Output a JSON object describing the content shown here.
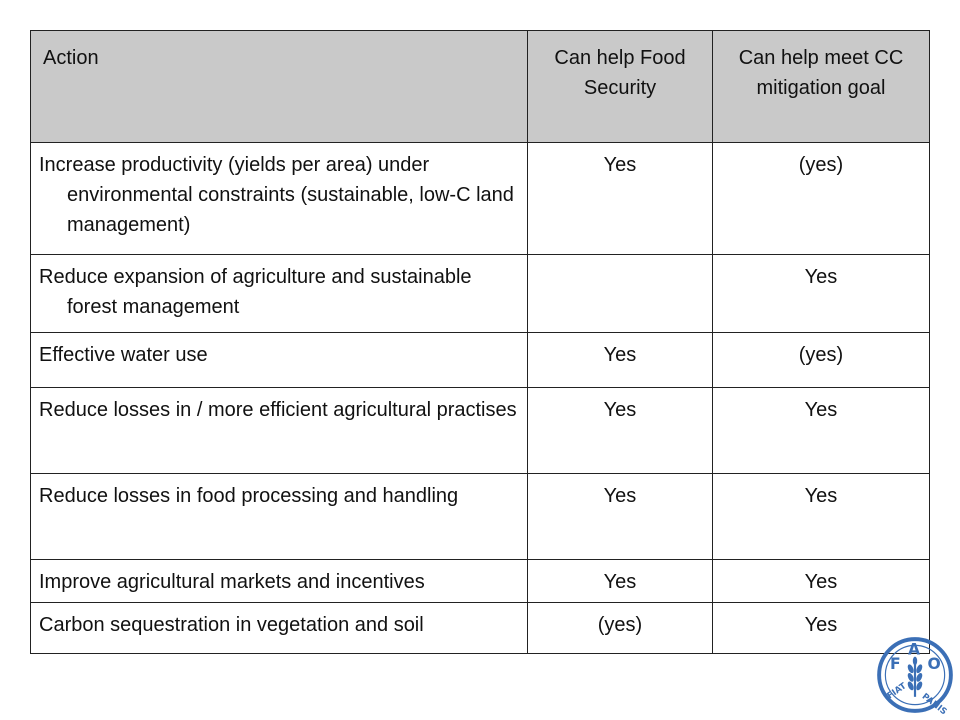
{
  "table": {
    "headers": {
      "action": "Action",
      "food_security": "Can help Food Security",
      "cc_mitigation": "Can help meet CC mitigation goal"
    },
    "rows": [
      {
        "action": "Increase productivity (yields per area) under environmental constraints (sustainable, low-C land management)",
        "food_security": "Yes",
        "cc_mitigation": "(yes)"
      },
      {
        "action": "Reduce expansion of agriculture and sustainable forest management",
        "food_security": "",
        "cc_mitigation": "Yes"
      },
      {
        "action": "Effective water use",
        "food_security": "Yes",
        "cc_mitigation": "(yes)"
      },
      {
        "action": "Reduce losses in / more efficient agricultural practises",
        "food_security": "Yes",
        "cc_mitigation": "Yes"
      },
      {
        "action": "Reduce losses in food processing and handling",
        "food_security": "Yes",
        "cc_mitigation": "Yes"
      },
      {
        "action": "Improve agricultural markets and incentives",
        "food_security": "Yes",
        "cc_mitigation": "Yes"
      },
      {
        "action": "Carbon sequestration in vegetation and soil",
        "food_security": "(yes)",
        "cc_mitigation": "Yes"
      }
    ]
  },
  "logo": {
    "name": "fao-logo",
    "letters": "FAO",
    "motto": "FIAT PANIS",
    "color": "#3b6fb6"
  }
}
